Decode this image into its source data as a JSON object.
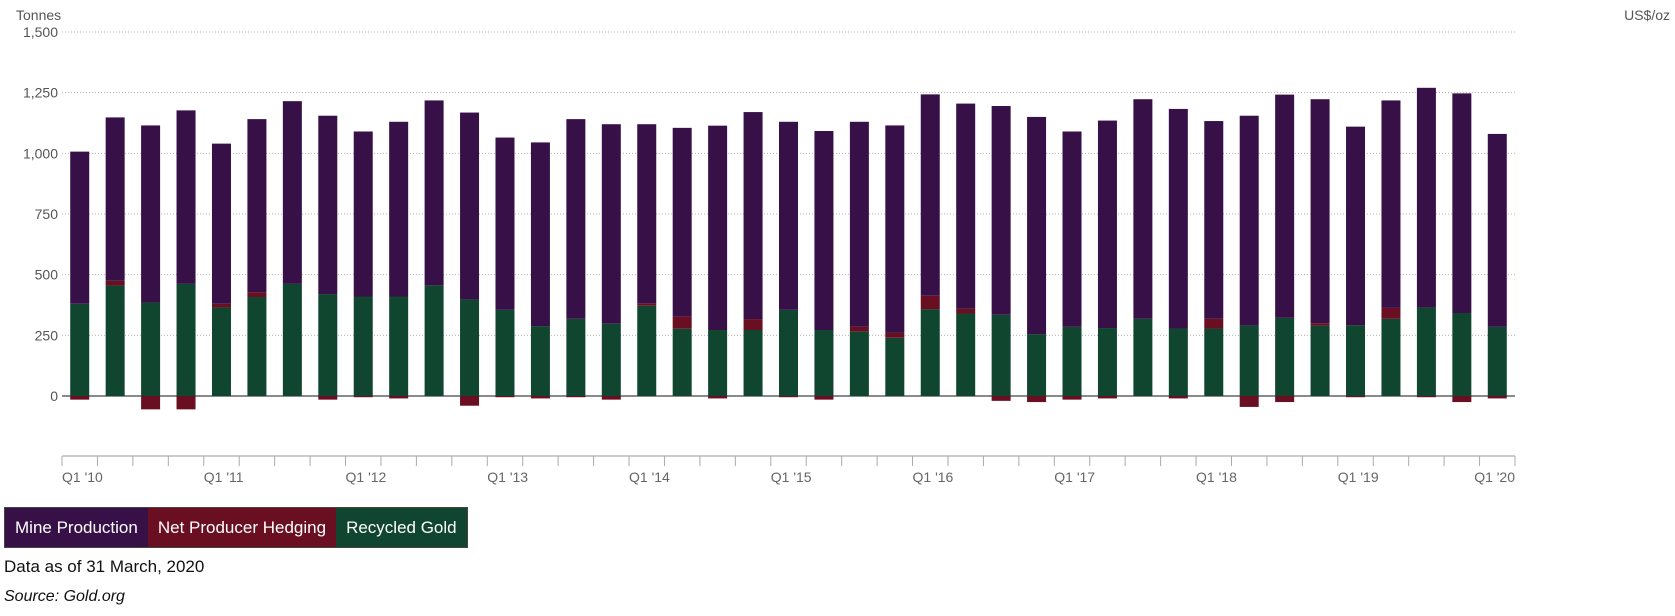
{
  "chart_data": {
    "type": "bar",
    "stacked": true,
    "left_axis_label": "Tonnes",
    "right_axis_label": "US$/oz",
    "ylim": [
      -250,
      1500
    ],
    "yticks": [
      0,
      250,
      500,
      750,
      1000,
      1250,
      1500
    ],
    "ytick_labels": [
      "0",
      "250",
      "500",
      "750",
      "1,000",
      "1,250",
      "1,500"
    ],
    "grid": true,
    "categories": [
      "Q1 '10",
      "Q2 '10",
      "Q3 '10",
      "Q4 '10",
      "Q1 '11",
      "Q2 '11",
      "Q3 '11",
      "Q4 '11",
      "Q1 '12",
      "Q2 '12",
      "Q3 '12",
      "Q4 '12",
      "Q1 '13",
      "Q2 '13",
      "Q3 '13",
      "Q4 '13",
      "Q1 '14",
      "Q2 '14",
      "Q3 '14",
      "Q4 '14",
      "Q1 '15",
      "Q2 '15",
      "Q3 '15",
      "Q4 '15",
      "Q1 '16",
      "Q2 '16",
      "Q3 '16",
      "Q4 '16",
      "Q1 '17",
      "Q2 '17",
      "Q3 '17",
      "Q4 '17",
      "Q1 '18",
      "Q2 '18",
      "Q3 '18",
      "Q4 '18",
      "Q1 '19",
      "Q2 '19",
      "Q3 '19",
      "Q4 '19",
      "Q1 '20"
    ],
    "xtick_labels": [
      "Q1 '10",
      "Q1 '11",
      "Q1 '12",
      "Q1 '13",
      "Q1 '14",
      "Q1 '15",
      "Q1 '16",
      "Q1 '17",
      "Q1 '18",
      "Q1 '19",
      "Q1 '20"
    ],
    "series": [
      {
        "name": "Recycled Gold",
        "color": "#10452f",
        "values": [
          380,
          455,
          385,
          462,
          365,
          408,
          462,
          420,
          410,
          410,
          456,
          398,
          355,
          288,
          318,
          298,
          372,
          277,
          272,
          272,
          355,
          272,
          265,
          240,
          358,
          340,
          335,
          255,
          285,
          280,
          318,
          278,
          278,
          290,
          322,
          290,
          292,
          318,
          365,
          342,
          285
        ]
      },
      {
        "name": "Net Producer Hedging",
        "color": "#6a0f22",
        "values": [
          -15,
          20,
          -55,
          -55,
          15,
          20,
          0,
          -15,
          -5,
          -10,
          0,
          -40,
          -5,
          -10,
          -5,
          -15,
          10,
          50,
          -10,
          45,
          -5,
          -15,
          20,
          20,
          55,
          20,
          -20,
          -25,
          -15,
          -10,
          0,
          -10,
          40,
          -45,
          -25,
          10,
          -5,
          45,
          -5,
          -25,
          -10
        ]
      },
      {
        "name": "Mine Production",
        "color": "#371048",
        "values": [
          627,
          673,
          730,
          715,
          660,
          713,
          753,
          735,
          680,
          720,
          762,
          770,
          710,
          757,
          823,
          822,
          738,
          778,
          842,
          853,
          775,
          820,
          845,
          855,
          830,
          845,
          860,
          895,
          805,
          855,
          905,
          905,
          815,
          865,
          920,
          923,
          818,
          855,
          905,
          905,
          795
        ]
      }
    ]
  },
  "legend": {
    "items": [
      {
        "label": "Mine Production",
        "color": "#371048"
      },
      {
        "label": "Net Producer Hedging",
        "color": "#6a0f22"
      },
      {
        "label": "Recycled Gold",
        "color": "#10452f"
      }
    ]
  },
  "footer": {
    "note": "Data as of 31 March, 2020",
    "source": "Source: Gold.org"
  }
}
